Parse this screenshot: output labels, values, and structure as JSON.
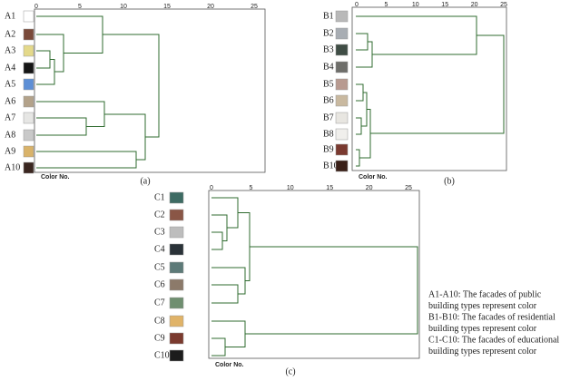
{
  "panels": [
    {
      "rows": [
        {
          "label": "A1",
          "color": "#ffffff"
        },
        {
          "label": "A2",
          "color": "#7a4a3a"
        },
        {
          "label": "A3",
          "color": "#e4d98a"
        },
        {
          "label": "A4",
          "color": "#151515"
        },
        {
          "label": "A5",
          "color": "#5d8fd6"
        },
        {
          "label": "A6",
          "color": "#b3a28a"
        },
        {
          "label": "A7",
          "color": "#e6e6e4"
        },
        {
          "label": "A8",
          "color": "#c9c9c9"
        },
        {
          "label": "A9",
          "color": "#d9b36a"
        },
        {
          "label": "A10",
          "color": "#3a2620"
        }
      ],
      "ticks": [
        0,
        5,
        10,
        15,
        20,
        25
      ],
      "axis_label": "Color No.",
      "caption": "(a)"
    },
    {
      "rows": [
        {
          "label": "B1",
          "color": "#b9b9b9"
        },
        {
          "label": "B2",
          "color": "#a8adb3"
        },
        {
          "label": "B3",
          "color": "#3f4d45"
        },
        {
          "label": "B4",
          "color": "#6e6e6a"
        },
        {
          "label": "B5",
          "color": "#b89a90"
        },
        {
          "label": "B6",
          "color": "#c9b9a0"
        },
        {
          "label": "B7",
          "color": "#e8e6e1"
        },
        {
          "label": "B8",
          "color": "#f0efec"
        },
        {
          "label": "B9",
          "color": "#7a3a30"
        },
        {
          "label": "B10",
          "color": "#3a2018"
        }
      ],
      "ticks": [
        0,
        5,
        10,
        15,
        20,
        25
      ],
      "axis_label": "Color No.",
      "caption": "(b)"
    },
    {
      "rows": [
        {
          "label": "C1",
          "color": "#3d6b63"
        },
        {
          "label": "C2",
          "color": "#8a5646"
        },
        {
          "label": "C3",
          "color": "#bdbdbd"
        },
        {
          "label": "C4",
          "color": "#2a3238"
        },
        {
          "label": "C5",
          "color": "#5d7a78"
        },
        {
          "label": "C6",
          "color": "#8c7a6a"
        },
        {
          "label": "C7",
          "color": "#6f8f70"
        },
        {
          "label": "C8",
          "color": "#e0b368"
        },
        {
          "label": "C9",
          "color": "#7a3a2e"
        },
        {
          "label": "C10",
          "color": "#1c1c1c"
        }
      ],
      "ticks": [
        0,
        5,
        10,
        15,
        20,
        25
      ],
      "axis_label": "Color No.",
      "caption": "(c)"
    }
  ],
  "legend": [
    "A1-A10: The facades of public",
    "building types represent color",
    "B1-B10: The facades of residential",
    "building types represent color",
    "C1-C10: The facades of educational",
    "building types represent color"
  ]
}
